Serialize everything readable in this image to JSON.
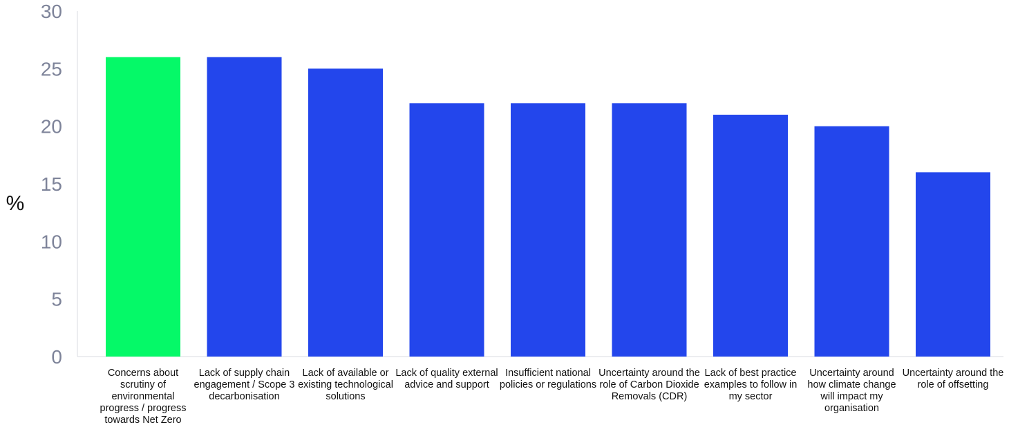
{
  "chart_data": {
    "type": "bar",
    "ylabel": "%",
    "ylim": [
      0,
      30
    ],
    "yticks": [
      "0",
      "5",
      "10",
      "15",
      "20",
      "25",
      "30"
    ],
    "categories": [
      "Concerns about scrutiny of environmental progress / progress towards Net Zero",
      "Lack of supply chain engagement / Scope 3 decarbonisation",
      "Lack of available or existing technological solutions",
      "Lack of quality external advice and support",
      "Insufficient national policies or regulations",
      "Uncertainty around the role of Carbon Dioxide Removals (CDR)",
      "Lack of best practice examples to follow in my sector",
      "Uncertainty around how climate change will impact my organisation",
      "Uncertainty around the role of offsetting"
    ],
    "values": [
      26,
      26,
      25,
      22,
      22,
      22,
      21,
      20,
      16
    ],
    "colors": [
      "#05f968",
      "#2346ec",
      "#2346ec",
      "#2346ec",
      "#2346ec",
      "#2346ec",
      "#2346ec",
      "#2346ec",
      "#2346ec"
    ],
    "grid": false,
    "legend": "none"
  }
}
